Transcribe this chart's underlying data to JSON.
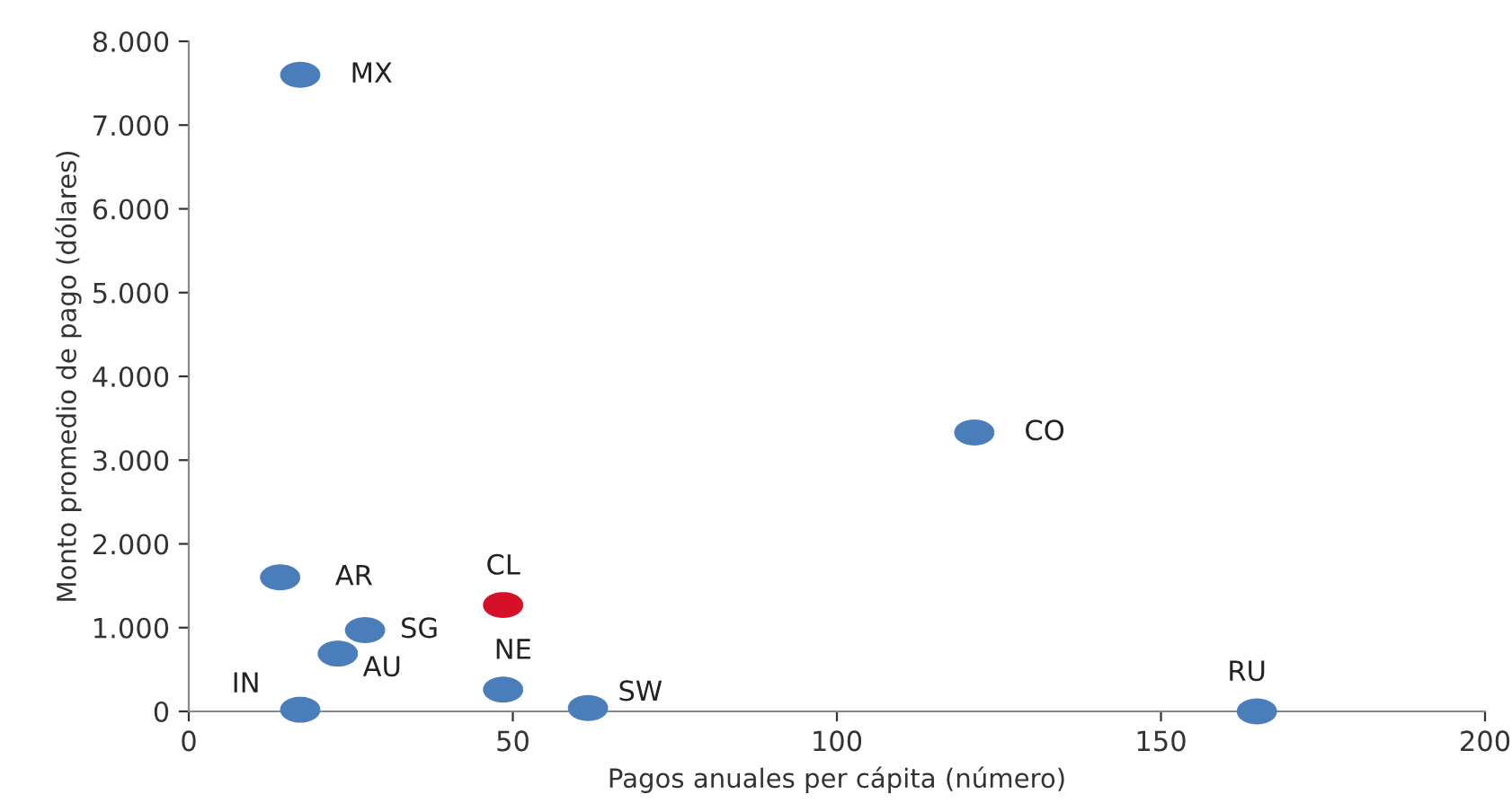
{
  "chart_data": {
    "type": "scatter",
    "xlabel": "Pagos anuales per cápita (número)",
    "ylabel": "Monto promedio de pago (dólares)",
    "xlim": [
      0,
      200
    ],
    "xticks": [
      0,
      50,
      100,
      150,
      200
    ],
    "ylim": [
      0,
      8000
    ],
    "yticks": [
      {
        "value": 0,
        "label": "0"
      },
      {
        "value": 1000,
        "label": "1.000"
      },
      {
        "value": 2000,
        "label": "2.000"
      },
      {
        "value": 3000,
        "label": "3.000"
      },
      {
        "value": 4000,
        "label": "4.000"
      },
      {
        "value": 5000,
        "label": "5.000"
      },
      {
        "value": 6000,
        "label": "6.000"
      },
      {
        "value": 7000,
        "label": "7.000"
      },
      {
        "value": 8000,
        "label": "8.000"
      }
    ],
    "grid": false,
    "legend": false,
    "marker": "circle",
    "series": [
      {
        "name": "MX",
        "color": "#4a7ebb",
        "x": [
          17.2
        ],
        "values": [
          7600
        ]
      },
      {
        "name": "CO",
        "color": "#4a7ebb",
        "x": [
          121.2
        ],
        "values": [
          3330
        ]
      },
      {
        "name": "AR",
        "color": "#4a7ebb",
        "x": [
          14.1
        ],
        "values": [
          1600
        ]
      },
      {
        "name": "CL",
        "color": "#d7102a",
        "x": [
          48.5
        ],
        "values": [
          1270
        ]
      },
      {
        "name": "SG",
        "color": "#4a7ebb",
        "x": [
          27.2
        ],
        "values": [
          970
        ]
      },
      {
        "name": "AU",
        "color": "#4a7ebb",
        "x": [
          23
        ],
        "values": [
          690
        ]
      },
      {
        "name": "IN",
        "color": "#4a7ebb",
        "x": [
          17.2
        ],
        "values": [
          20
        ]
      },
      {
        "name": "NE",
        "color": "#4a7ebb",
        "x": [
          48.5
        ],
        "values": [
          260
        ]
      },
      {
        "name": "SW",
        "color": "#4a7ebb",
        "x": [
          61.6
        ],
        "values": [
          40
        ]
      },
      {
        "name": "RU",
        "color": "#4a7ebb",
        "x": [
          164.8
        ],
        "values": [
          0
        ]
      }
    ]
  }
}
